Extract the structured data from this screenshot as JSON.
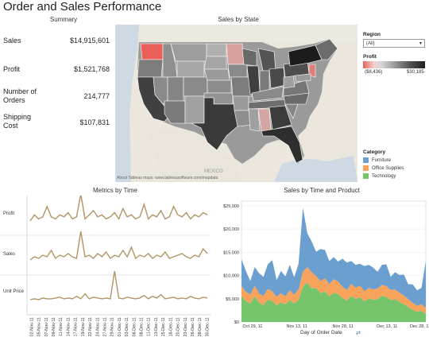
{
  "title": "Order and Sales Performance",
  "summary": {
    "heading": "Summary",
    "items": [
      {
        "label": "Sales",
        "value": "$14,915,601"
      },
      {
        "label": "Profit",
        "value": "$1,521,768"
      },
      {
        "label": "Number of Orders",
        "value": "214,777"
      },
      {
        "label": "Shipping Cost",
        "value": "$107,831"
      }
    ]
  },
  "map": {
    "heading": "Sales by State",
    "country_label": "MEXICO",
    "attribution": "About Tableau maps: www.tableausoftware.com/mapdata"
  },
  "filters": {
    "region_label": "Region",
    "region_value": "(All)",
    "profit_label": "Profit",
    "profit_min": "($8,436)",
    "profit_max": "$30,185",
    "colors": {
      "negative": "#e8625c",
      "positive": "#222222"
    }
  },
  "category": {
    "label": "Category",
    "items": [
      {
        "name": "Furniture",
        "color": "#6a9fcf"
      },
      {
        "name": "Office Supplies",
        "color": "#f7a35c"
      },
      {
        "name": "Technology",
        "color": "#76c46c"
      }
    ]
  },
  "metrics": {
    "heading": "Metrics by Time",
    "rows": [
      "Profit",
      "Sales",
      "Unit Price"
    ],
    "line_color": "#b39466",
    "dates": [
      "02-Nov-11",
      "05-Nov-11",
      "07-Nov-11",
      "09-Nov-11",
      "11-Nov-11",
      "14-Nov-11",
      "17-Nov-11",
      "19-Nov-11",
      "22-Nov-11",
      "24-Nov-11",
      "27-Nov-11",
      "29-Nov-11",
      "01-Dec-11",
      "03-Dec-11",
      "06-Dec-11",
      "08-Dec-11",
      "11-Dec-11",
      "13-Dec-11",
      "15-Dec-11",
      "18-Dec-11",
      "20-Dec-11",
      "23-Dec-11",
      "26-Dec-11",
      "28-Dec-11",
      "30-Dec-11"
    ]
  },
  "chart_data": {
    "type": "area",
    "title": "Sales by Time and Product",
    "xlabel": "Day of Order Date",
    "x_ticks": [
      "Oct 29, 11",
      "Nov 13, 11",
      "Nov 28, 11",
      "Dec 13, 11",
      "Dec 28, 11"
    ],
    "y_ticks": [
      "$0",
      "$5,000",
      "$10,000",
      "$15,000",
      "$20,000",
      "$25,000"
    ],
    "ylim": [
      0,
      26000
    ],
    "series": [
      {
        "name": "Technology",
        "color": "#76c46c",
        "values": [
          5500,
          4500,
          4000,
          5500,
          4200,
          3600,
          4800,
          4500,
          3600,
          4200,
          3800,
          4700,
          4000,
          4700,
          7600,
          8500,
          7200,
          7300,
          6200,
          6600,
          5500,
          6300,
          6000,
          5200,
          4600,
          5600,
          5000,
          5300,
          4500,
          5000,
          4800,
          4900,
          5600,
          5400,
          4700,
          4900,
          4300,
          3800,
          3200,
          2600,
          2200,
          2400,
          1800
        ]
      },
      {
        "name": "Office Supplies",
        "color": "#f7a35c",
        "values": [
          2200,
          2000,
          1900,
          2300,
          1900,
          2000,
          2300,
          2100,
          1800,
          2000,
          1700,
          2100,
          1900,
          2300,
          3200,
          3300,
          3500,
          2600,
          2600,
          2800,
          2600,
          2900,
          2700,
          2400,
          2300,
          2600,
          2400,
          2500,
          2100,
          2300,
          2200,
          2300,
          2400,
          2300,
          2200,
          2100,
          2000,
          1900,
          1700,
          1500,
          1300,
          1400,
          1300
        ]
      },
      {
        "name": "Furniture",
        "color": "#6a9fcf",
        "values": [
          5800,
          4500,
          2900,
          4000,
          4400,
          4100,
          5300,
          6700,
          3600,
          4800,
          4300,
          5500,
          3700,
          5500,
          13800,
          7200,
          6600,
          5200,
          6900,
          6100,
          5000,
          4800,
          4300,
          6000,
          5900,
          4900,
          4900,
          4700,
          5400,
          5000,
          4700,
          3600,
          4300,
          4700,
          2800,
          3700,
          3800,
          4500,
          3200,
          4000,
          3300,
          3500,
          10000
        ]
      }
    ]
  },
  "metric_series": {
    "profit": [
      2,
      5,
      3,
      4,
      9,
      4,
      3,
      5,
      4,
      6,
      3,
      4,
      15,
      3,
      5,
      7,
      4,
      5,
      3,
      4,
      6,
      3,
      8,
      4,
      5,
      3,
      4,
      10,
      3,
      5,
      4,
      7,
      3,
      4,
      9,
      5,
      4,
      6,
      3,
      5,
      4,
      6,
      5
    ],
    "sales": [
      2,
      4,
      3,
      5,
      4,
      8,
      3,
      5,
      4,
      6,
      4,
      3,
      20,
      4,
      5,
      3,
      6,
      4,
      7,
      3,
      5,
      4,
      8,
      4,
      10,
      3,
      5,
      4,
      6,
      3,
      5,
      4,
      7,
      3,
      4,
      5,
      6,
      4,
      3,
      5,
      4,
      9,
      6
    ],
    "unit_price": [
      1,
      2,
      1,
      3,
      2,
      2,
      3,
      4,
      2,
      3,
      2,
      5,
      2,
      8,
      2,
      4,
      3,
      2,
      3,
      2,
      35,
      3,
      2,
      4,
      3,
      2,
      3,
      6,
      2,
      5,
      3,
      7,
      2,
      3,
      4,
      2,
      3,
      2,
      5,
      3,
      2,
      4,
      3
    ]
  }
}
